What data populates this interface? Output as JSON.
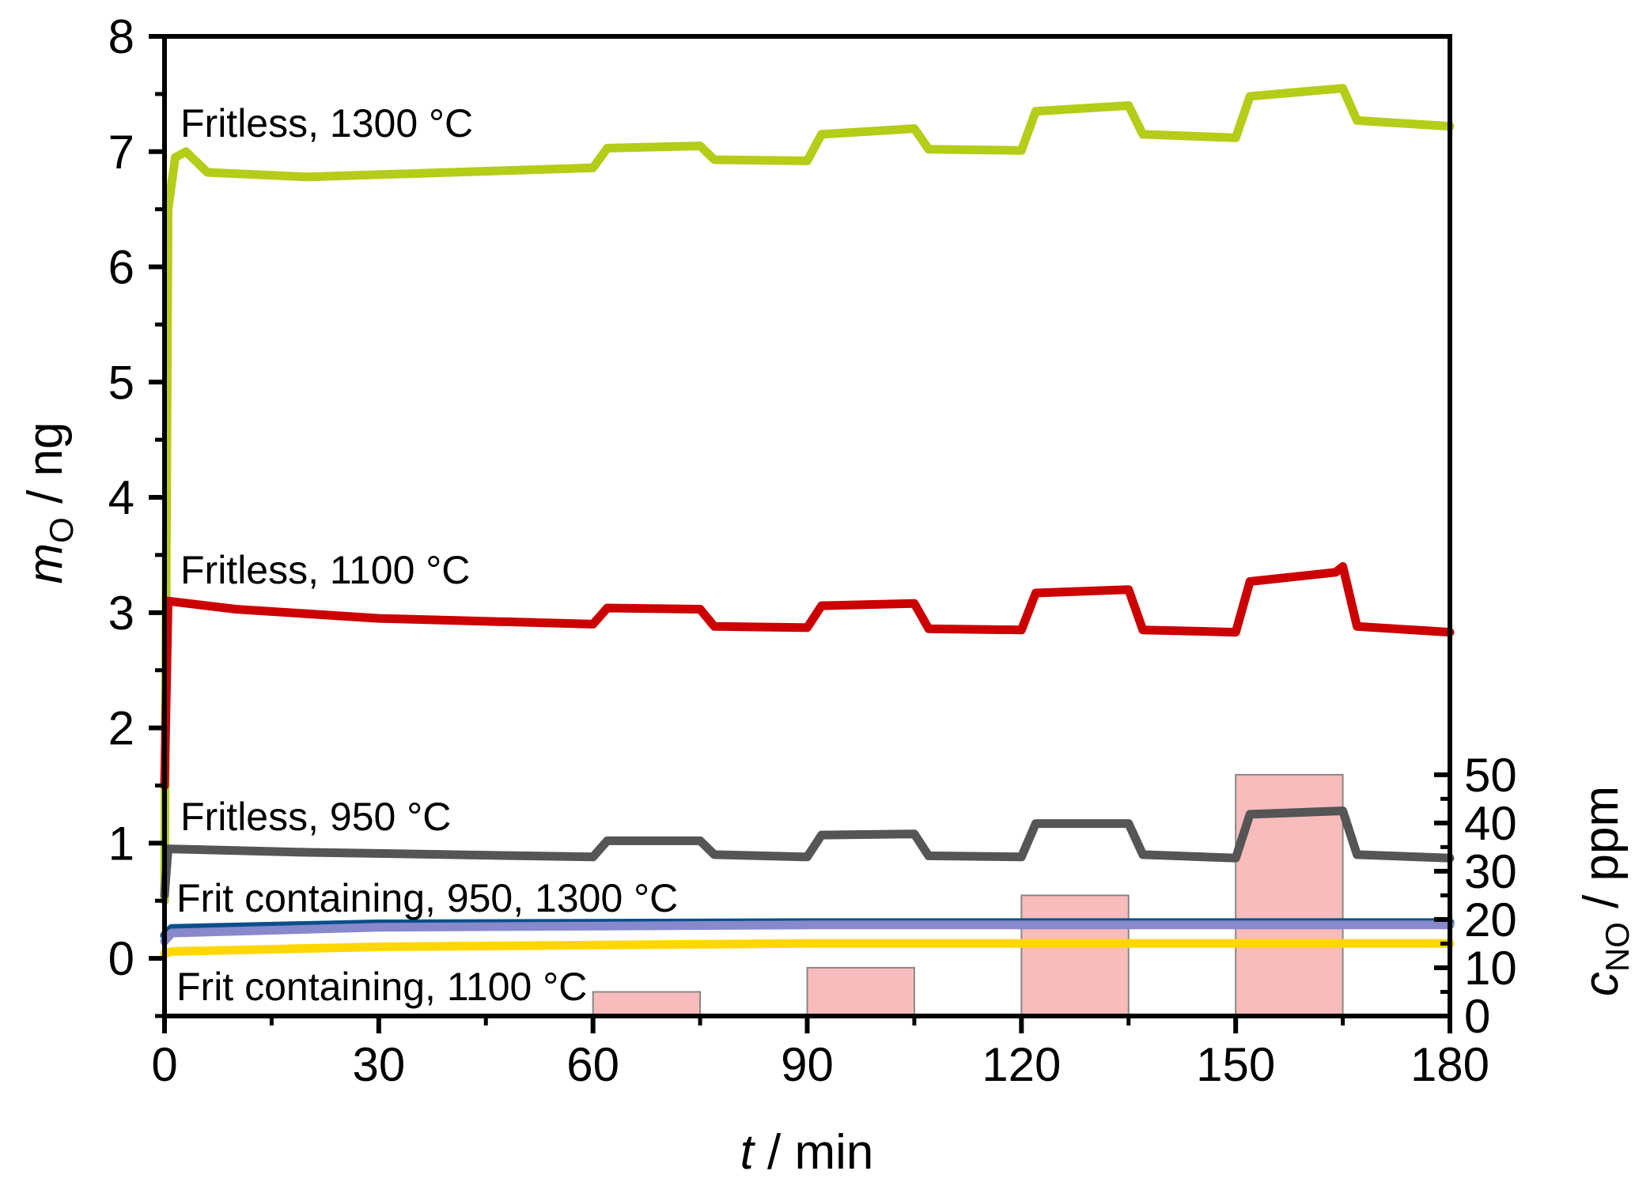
{
  "chart_data": {
    "type": "line",
    "xlabel": {
      "var": "t",
      "rest": " / min"
    },
    "ylabel": {
      "var": "m",
      "sub": "O",
      "rest": " / ng"
    },
    "y2label": {
      "var": "c",
      "sub": "NO",
      "rest": " / ppm"
    },
    "xlim": [
      0,
      180
    ],
    "ylim": [
      -0.5,
      8
    ],
    "y2lim": [
      0,
      203
    ],
    "xticks": [
      0,
      30,
      60,
      90,
      120,
      150,
      180
    ],
    "yticks": [
      0,
      1,
      2,
      3,
      4,
      5,
      6,
      7,
      8
    ],
    "y2ticks": [
      0,
      10,
      20,
      30,
      40,
      50
    ],
    "grid": false,
    "bars": {
      "axis": "right",
      "color": "#f8bcbc",
      "items": [
        {
          "start": 60,
          "end": 75,
          "value": 5
        },
        {
          "start": 90,
          "end": 105,
          "value": 10
        },
        {
          "start": 120,
          "end": 135,
          "value": 25
        },
        {
          "start": 150,
          "end": 165,
          "value": 50
        }
      ]
    },
    "series": [
      {
        "name": "Fritless, 1300 °C",
        "color": "#b5cc18",
        "points": [
          [
            0,
            0.5
          ],
          [
            0.5,
            6.5
          ],
          [
            1.5,
            6.95
          ],
          [
            3,
            7.0
          ],
          [
            6,
            6.82
          ],
          [
            20,
            6.78
          ],
          [
            40,
            6.82
          ],
          [
            60,
            6.86
          ],
          [
            62,
            7.03
          ],
          [
            75,
            7.05
          ],
          [
            77,
            6.93
          ],
          [
            90,
            6.92
          ],
          [
            92,
            7.15
          ],
          [
            105,
            7.2
          ],
          [
            107,
            7.02
          ],
          [
            120,
            7.01
          ],
          [
            122,
            7.35
          ],
          [
            135,
            7.4
          ],
          [
            137,
            7.15
          ],
          [
            150,
            7.12
          ],
          [
            152,
            7.48
          ],
          [
            165,
            7.55
          ],
          [
            167,
            7.27
          ],
          [
            180,
            7.22
          ]
        ]
      },
      {
        "name": "Fritless, 1100 °C",
        "color": "#cc0000",
        "points": [
          [
            0,
            1.5
          ],
          [
            0.5,
            3.1
          ],
          [
            10,
            3.03
          ],
          [
            30,
            2.95
          ],
          [
            60,
            2.9
          ],
          [
            62,
            3.04
          ],
          [
            75,
            3.03
          ],
          [
            77,
            2.88
          ],
          [
            90,
            2.87
          ],
          [
            92,
            3.06
          ],
          [
            105,
            3.08
          ],
          [
            107,
            2.86
          ],
          [
            120,
            2.85
          ],
          [
            122,
            3.17
          ],
          [
            135,
            3.2
          ],
          [
            137,
            2.85
          ],
          [
            150,
            2.83
          ],
          [
            152,
            3.27
          ],
          [
            164,
            3.35
          ],
          [
            165,
            3.4
          ],
          [
            167,
            2.88
          ],
          [
            180,
            2.83
          ]
        ]
      },
      {
        "name": "Fritless, 950 °C",
        "color": "#555555",
        "points": [
          [
            0,
            0.55
          ],
          [
            0.5,
            0.95
          ],
          [
            20,
            0.92
          ],
          [
            60,
            0.88
          ],
          [
            62,
            1.02
          ],
          [
            75,
            1.02
          ],
          [
            77,
            0.9
          ],
          [
            90,
            0.88
          ],
          [
            92,
            1.07
          ],
          [
            105,
            1.08
          ],
          [
            107,
            0.89
          ],
          [
            120,
            0.88
          ],
          [
            122,
            1.17
          ],
          [
            135,
            1.17
          ],
          [
            137,
            0.9
          ],
          [
            150,
            0.87
          ],
          [
            152,
            1.25
          ],
          [
            165,
            1.28
          ],
          [
            167,
            0.9
          ],
          [
            180,
            0.87
          ]
        ]
      },
      {
        "name": "Frit containing, 950 °C",
        "color": "#0a4f8a",
        "points": [
          [
            0,
            0.2
          ],
          [
            1,
            0.26
          ],
          [
            30,
            0.3
          ],
          [
            90,
            0.31
          ],
          [
            180,
            0.31
          ]
        ]
      },
      {
        "name": "Frit containing, 1300 °C",
        "color": "#8888cc",
        "points": [
          [
            0,
            0.15
          ],
          [
            1,
            0.22
          ],
          [
            30,
            0.27
          ],
          [
            90,
            0.29
          ],
          [
            180,
            0.29
          ]
        ]
      },
      {
        "name": "Frit containing, 1100 °C",
        "color": "#ffd700",
        "points": [
          [
            0,
            0.04
          ],
          [
            1,
            0.06
          ],
          [
            30,
            0.1
          ],
          [
            90,
            0.13
          ],
          [
            180,
            0.13
          ]
        ]
      }
    ],
    "annotations": [
      "Fritless, 1300 °C",
      "Fritless, 1100 °C",
      "Fritless, 950 °C",
      "Frit containing, 950, 1300 °C",
      "Frit containing, 1100 °C"
    ]
  }
}
